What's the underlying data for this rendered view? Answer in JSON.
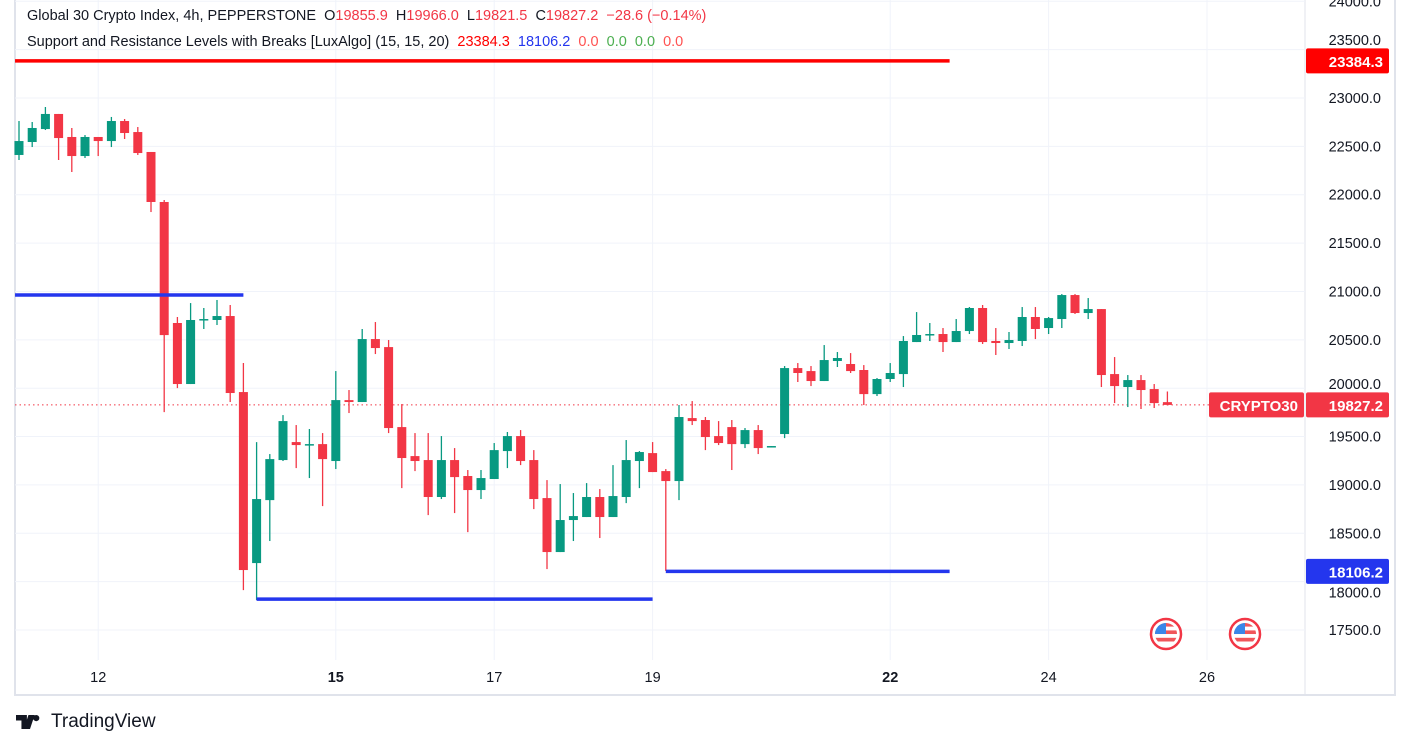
{
  "legend": {
    "symbol": "Global 30 Crypto Index, 4h, PEPPERSTONE",
    "open_prefix": "O",
    "open": "19855.9",
    "high_prefix": "H",
    "high": "19966.0",
    "low_prefix": "L",
    "low": "19821.5",
    "close_prefix": "C",
    "close": "19827.2",
    "change": "−28.6 (−0.14%)",
    "indicator": "Support and Resistance Levels with Breaks [LuxAlgo] (15, 15, 20)",
    "ind_resistance": "23384.3",
    "ind_support": "18106.2",
    "ind_values": [
      "0.0",
      "0.0",
      "0.0",
      "0.0"
    ]
  },
  "price_labels": {
    "symbol_tag": "CRYPTO30",
    "last_price": "19827.2",
    "resistance": "23384.3",
    "support": "18106.2"
  },
  "brand": "TradingView",
  "colors": {
    "up": "#089981",
    "down": "#F23645",
    "resistance": "#FF0000",
    "support": "#2436EE"
  },
  "icons": [
    "us-flag-event-icon",
    "us-flag-event-icon"
  ],
  "chart_data": {
    "type": "candlestick",
    "interval": "4h",
    "ylim": [
      17300,
      24000
    ],
    "y_ticks": [
      "24000.0",
      "23500.0",
      "23000.0",
      "22500.0",
      "22000.0",
      "21500.0",
      "21000.0",
      "20500.0",
      "20000.0",
      "19500.0",
      "19000.0",
      "18500.0",
      "18000.0",
      "17500.0"
    ],
    "x_ticks": [
      {
        "label": "12",
        "bold": false
      },
      {
        "label": "15",
        "bold": true
      },
      {
        "label": "17",
        "bold": false
      },
      {
        "label": "19",
        "bold": false
      },
      {
        "label": "22",
        "bold": true
      },
      {
        "label": "24",
        "bold": false
      },
      {
        "label": "26",
        "bold": false
      }
    ],
    "grid": true,
    "ohlc": [
      [
        22411,
        22762,
        22359,
        22555
      ],
      [
        22545,
        22752,
        22493,
        22690
      ],
      [
        22679,
        22907,
        22669,
        22835
      ],
      [
        22835,
        22835,
        22359,
        22586
      ],
      [
        22597,
        22690,
        22235,
        22400
      ],
      [
        22400,
        22617,
        22380,
        22597
      ],
      [
        22597,
        22597,
        22400,
        22555
      ],
      [
        22555,
        22804,
        22493,
        22762
      ],
      [
        22762,
        22783,
        22576,
        22638
      ],
      [
        22648,
        22700,
        22411,
        22431
      ],
      [
        22442,
        22442,
        21821,
        21925
      ],
      [
        21925,
        21945,
        19753,
        20549
      ],
      [
        20674,
        20736,
        20001,
        20043
      ],
      [
        20043,
        20880,
        20043,
        20705
      ],
      [
        20705,
        20829,
        20612,
        20715
      ],
      [
        20705,
        20912,
        20653,
        20746
      ],
      [
        20746,
        20860,
        19857,
        19950
      ],
      [
        19960,
        20260,
        17913,
        18120
      ],
      [
        18192,
        19443,
        17810,
        18854
      ],
      [
        18843,
        19319,
        18420,
        19267
      ],
      [
        19257,
        19722,
        19247,
        19660
      ],
      [
        19443,
        19619,
        19174,
        19412
      ],
      [
        19412,
        19578,
        19071,
        19422
      ],
      [
        19422,
        19536,
        18781,
        19267
      ],
      [
        19247,
        20177,
        19164,
        19877
      ],
      [
        19877,
        19981,
        19743,
        19857
      ],
      [
        19857,
        20612,
        19857,
        20508
      ],
      [
        20508,
        20684,
        20353,
        20415
      ],
      [
        20425,
        20498,
        19536,
        19588
      ],
      [
        19598,
        19836,
        18967,
        19278
      ],
      [
        19298,
        19536,
        19143,
        19247
      ],
      [
        19257,
        19536,
        18688,
        18875
      ],
      [
        18875,
        19505,
        18854,
        19257
      ],
      [
        19257,
        19381,
        18709,
        19081
      ],
      [
        19092,
        19154,
        18512,
        18947
      ],
      [
        18947,
        19154,
        18854,
        19071
      ],
      [
        19061,
        19433,
        19061,
        19360
      ],
      [
        19350,
        19547,
        19174,
        19505
      ],
      [
        19505,
        19567,
        19205,
        19247
      ],
      [
        19257,
        19360,
        18750,
        18854
      ],
      [
        18864,
        19050,
        18130,
        18306
      ],
      [
        18306,
        19009,
        18306,
        18637
      ],
      [
        18637,
        18916,
        18420,
        18678
      ],
      [
        18668,
        19019,
        18668,
        18875
      ],
      [
        18875,
        18957,
        18451,
        18668
      ],
      [
        18668,
        19205,
        18668,
        18885
      ],
      [
        18875,
        19464,
        18812,
        19257
      ],
      [
        19247,
        19350,
        18967,
        19340
      ],
      [
        19329,
        19443,
        19133,
        19133
      ],
      [
        19143,
        19164,
        18110,
        19040
      ],
      [
        19040,
        19826,
        18843,
        19702
      ],
      [
        19691,
        19867,
        19619,
        19660
      ],
      [
        19671,
        19702,
        19360,
        19495
      ],
      [
        19505,
        19660,
        19412,
        19433
      ],
      [
        19598,
        19671,
        19154,
        19422
      ],
      [
        19422,
        19588,
        19381,
        19567
      ],
      [
        19567,
        19619,
        19319,
        19381
      ],
      [
        19392,
        19402,
        19392,
        19402
      ],
      [
        19526,
        20229,
        19484,
        20208
      ],
      [
        20208,
        20260,
        20064,
        20157
      ],
      [
        20177,
        20229,
        20022,
        20074
      ],
      [
        20074,
        20446,
        20074,
        20291
      ],
      [
        20281,
        20374,
        20219,
        20312
      ],
      [
        20250,
        20363,
        20157,
        20177
      ],
      [
        20188,
        20239,
        19826,
        19939
      ],
      [
        19939,
        20105,
        19919,
        20095
      ],
      [
        20095,
        20260,
        20064,
        20157
      ],
      [
        20146,
        20539,
        20012,
        20488
      ],
      [
        20477,
        20787,
        20477,
        20550
      ],
      [
        20550,
        20674,
        20488,
        20560
      ],
      [
        20560,
        20622,
        20374,
        20477
      ],
      [
        20477,
        20715,
        20477,
        20591
      ],
      [
        20591,
        20839,
        20560,
        20829
      ],
      [
        20829,
        20860,
        20457,
        20477
      ],
      [
        20488,
        20622,
        20343,
        20467
      ],
      [
        20467,
        20581,
        20405,
        20498
      ],
      [
        20488,
        20839,
        20436,
        20736
      ],
      [
        20736,
        20839,
        20508,
        20612
      ],
      [
        20622,
        20736,
        20560,
        20725
      ],
      [
        20715,
        20973,
        20622,
        20963
      ],
      [
        20963,
        20973,
        20767,
        20777
      ],
      [
        20777,
        20932,
        20715,
        20818
      ],
      [
        20818,
        20818,
        20012,
        20136
      ],
      [
        20146,
        20322,
        19846,
        20022
      ],
      [
        20012,
        20136,
        19805,
        20084
      ],
      [
        20084,
        20136,
        19785,
        19981
      ],
      [
        19991,
        20043,
        19795,
        19846
      ],
      [
        19855.9,
        19966.0,
        19821.5,
        19827.2
      ]
    ],
    "levels": [
      {
        "type": "resistance",
        "value": 23384.3
      },
      {
        "type": "support",
        "value": 20963
      },
      {
        "type": "support",
        "value": 17820
      },
      {
        "type": "support",
        "value": 18106.2
      }
    ],
    "last_price": 19827.2
  }
}
